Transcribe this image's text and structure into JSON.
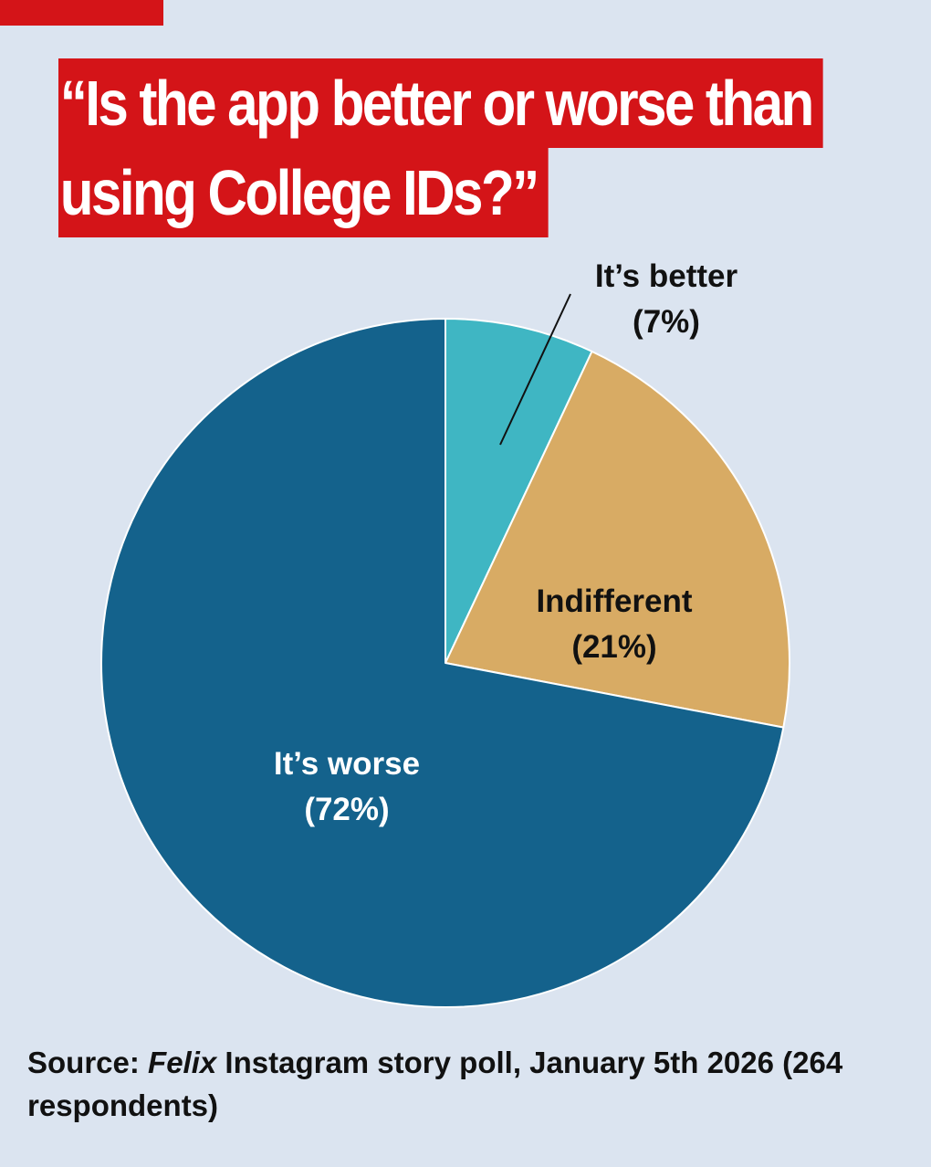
{
  "title": {
    "line1": "“Is the app better or worse than",
    "line2": "using College IDs?”"
  },
  "chart_data": {
    "type": "pie",
    "slices": [
      {
        "label": "It’s better",
        "pct_label": "(7%)",
        "value": 7,
        "color": "#3fb6c3"
      },
      {
        "label": "Indifferent",
        "pct_label": "(21%)",
        "value": 21,
        "color": "#d8ab64"
      },
      {
        "label": "It’s worse",
        "pct_label": "(72%)",
        "value": 72,
        "color": "#14628c"
      }
    ],
    "start": "12 o'clock, clockwise"
  },
  "source": {
    "prefix": "Source: ",
    "publication": "Felix",
    "text": " Instagram story poll, January 5th 2026 (264 respondents)"
  },
  "colors": {
    "background": "#dbe4f0",
    "accent": "#d41418",
    "text": "#111111"
  }
}
